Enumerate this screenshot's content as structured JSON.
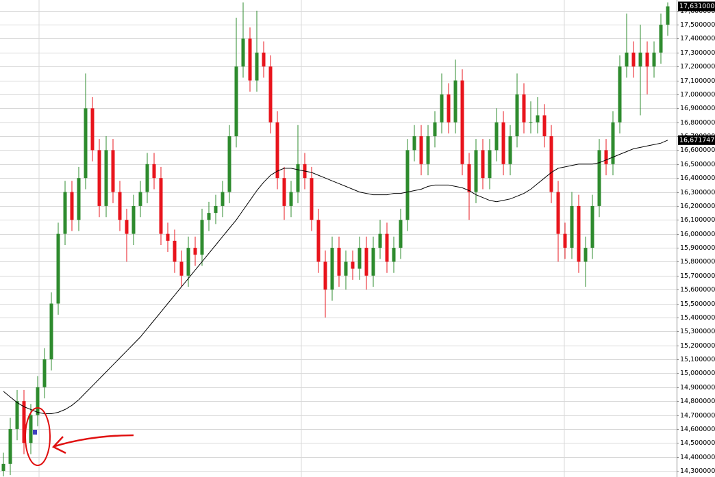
{
  "chart_data": {
    "type": "candlestick",
    "up_color": "#2e8b2e",
    "down_color": "#e8141c",
    "ma_color": "#000000",
    "grid": true,
    "ylim": [
      14.256,
      17.677
    ],
    "yticks": [
      {
        "value": 14.3,
        "label": "14,300000"
      },
      {
        "value": 14.4,
        "label": "14,400000"
      },
      {
        "value": 14.5,
        "label": "14,500000"
      },
      {
        "value": 14.6,
        "label": "14,600000"
      },
      {
        "value": 14.7,
        "label": "14,700000"
      },
      {
        "value": 14.8,
        "label": "14,800000"
      },
      {
        "value": 14.9,
        "label": "14,900000"
      },
      {
        "value": 15.0,
        "label": "15,000000"
      },
      {
        "value": 15.1,
        "label": "15,100000"
      },
      {
        "value": 15.2,
        "label": "15,200000"
      },
      {
        "value": 15.3,
        "label": "15,300000"
      },
      {
        "value": 15.4,
        "label": "15,400000"
      },
      {
        "value": 15.5,
        "label": "15,500000"
      },
      {
        "value": 15.6,
        "label": "15,600000"
      },
      {
        "value": 15.7,
        "label": "15,700000"
      },
      {
        "value": 15.8,
        "label": "15,800000"
      },
      {
        "value": 15.9,
        "label": "15,900000"
      },
      {
        "value": 16.0,
        "label": "16,000000"
      },
      {
        "value": 16.1,
        "label": "16,100000"
      },
      {
        "value": 16.2,
        "label": "16,200000"
      },
      {
        "value": 16.3,
        "label": "16,300000"
      },
      {
        "value": 16.4,
        "label": "16,400000"
      },
      {
        "value": 16.5,
        "label": "16,500000"
      },
      {
        "value": 16.6,
        "label": "16,600000"
      },
      {
        "value": 16.7,
        "label": "16,700000"
      },
      {
        "value": 16.8,
        "label": "16,800000"
      },
      {
        "value": 16.9,
        "label": "16,900000"
      },
      {
        "value": 17.0,
        "label": "17,000000"
      },
      {
        "value": 17.1,
        "label": "17,100000"
      },
      {
        "value": 17.2,
        "label": "17,200000"
      },
      {
        "value": 17.3,
        "label": "17,300000"
      },
      {
        "value": 17.4,
        "label": "17,400000"
      },
      {
        "value": 17.5,
        "label": "17,500000"
      },
      {
        "value": 17.6,
        "label": "17,600000"
      }
    ],
    "last_price": {
      "value": 17.631,
      "label": "17,631000"
    },
    "ma_last": {
      "value": 16.671747,
      "label": "16,671747"
    },
    "open": [
      14.3,
      14.35,
      14.6,
      14.8,
      14.5,
      14.7,
      14.9,
      15.1,
      15.5,
      16.0,
      16.3,
      16.1,
      16.4,
      16.9,
      16.6,
      16.2,
      16.6,
      16.3,
      16.1,
      16.0,
      16.2,
      16.3,
      16.5,
      16.4,
      16.0,
      15.95,
      15.8,
      15.7,
      15.9,
      15.85,
      16.1,
      16.15,
      16.2,
      16.3,
      16.7,
      17.2,
      17.4,
      17.1,
      17.3,
      17.2,
      16.8,
      16.4,
      16.2,
      16.3,
      16.5,
      16.4,
      16.1,
      15.8,
      15.6,
      15.9,
      15.7,
      15.8,
      15.75,
      15.9,
      15.7,
      15.9,
      16.0,
      15.8,
      15.9,
      16.1,
      16.6,
      16.7,
      16.5,
      16.7,
      16.8,
      17.0,
      16.8,
      17.1,
      16.5,
      16.3,
      16.6,
      16.4,
      16.6,
      16.8,
      16.5,
      16.7,
      17.0,
      16.8,
      16.8,
      16.85,
      16.7,
      16.3,
      16.0,
      15.9,
      16.2,
      15.8,
      15.9,
      16.2,
      16.6,
      16.5,
      16.8,
      17.2,
      17.3,
      17.2,
      17.3,
      17.2,
      17.3,
      17.5
    ],
    "high": [
      14.43,
      14.68,
      14.88,
      14.88,
      14.78,
      14.98,
      15.18,
      15.58,
      16.08,
      16.38,
      16.38,
      16.48,
      17.15,
      16.98,
      16.68,
      16.7,
      16.68,
      16.38,
      16.18,
      16.28,
      16.38,
      16.58,
      16.58,
      16.48,
      16.08,
      16.03,
      15.88,
      15.98,
      15.98,
      16.18,
      16.23,
      16.28,
      16.38,
      16.78,
      17.55,
      17.66,
      17.48,
      17.6,
      17.38,
      17.28,
      16.88,
      16.48,
      16.38,
      16.78,
      16.58,
      16.48,
      16.18,
      15.88,
      15.98,
      15.98,
      15.88,
      15.88,
      15.98,
      15.98,
      15.98,
      16.1,
      16.08,
      15.98,
      16.18,
      16.68,
      16.78,
      16.78,
      16.78,
      16.88,
      17.15,
      17.08,
      17.25,
      17.18,
      16.58,
      16.68,
      16.68,
      16.68,
      16.9,
      16.88,
      16.78,
      17.15,
      17.08,
      16.95,
      16.98,
      16.93,
      16.78,
      16.38,
      16.08,
      16.3,
      16.28,
      15.98,
      16.28,
      16.68,
      16.68,
      16.88,
      17.28,
      17.58,
      17.38,
      17.5,
      17.38,
      17.38,
      17.58,
      17.66
    ],
    "low": [
      14.26,
      14.27,
      14.52,
      14.42,
      14.42,
      14.62,
      14.82,
      15.02,
      15.42,
      15.92,
      16.02,
      16.02,
      16.32,
      16.52,
      16.12,
      16.12,
      16.22,
      16.02,
      15.8,
      15.92,
      16.12,
      16.22,
      16.32,
      15.92,
      15.87,
      15.72,
      15.62,
      15.62,
      15.77,
      15.77,
      16.02,
      16.07,
      16.12,
      16.22,
      16.62,
      17.12,
      17.02,
      17.02,
      17.12,
      16.72,
      16.32,
      16.1,
      16.12,
      16.22,
      16.32,
      16.02,
      15.72,
      15.4,
      15.52,
      15.62,
      15.6,
      15.67,
      15.67,
      15.6,
      15.62,
      15.82,
      15.72,
      15.72,
      15.82,
      16.02,
      16.52,
      16.42,
      16.42,
      16.62,
      16.72,
      16.72,
      16.72,
      16.42,
      16.1,
      16.22,
      16.32,
      16.32,
      16.52,
      16.42,
      16.42,
      16.62,
      16.72,
      16.72,
      16.72,
      16.62,
      16.22,
      15.8,
      15.82,
      15.82,
      15.72,
      15.62,
      15.82,
      16.12,
      16.42,
      16.42,
      16.72,
      17.12,
      17.12,
      16.85,
      17.0,
      17.12,
      17.22,
      17.42
    ],
    "close": [
      14.35,
      14.6,
      14.8,
      14.5,
      14.7,
      14.9,
      15.1,
      15.5,
      16.0,
      16.3,
      16.1,
      16.4,
      16.9,
      16.6,
      16.2,
      16.6,
      16.3,
      16.1,
      16.0,
      16.2,
      16.3,
      16.5,
      16.4,
      16.0,
      15.95,
      15.8,
      15.7,
      15.9,
      15.85,
      16.1,
      16.15,
      16.2,
      16.3,
      16.7,
      17.2,
      17.4,
      17.1,
      17.3,
      17.2,
      16.8,
      16.4,
      16.2,
      16.3,
      16.5,
      16.4,
      16.1,
      15.8,
      15.6,
      15.9,
      15.7,
      15.8,
      15.75,
      15.9,
      15.7,
      15.9,
      16.0,
      15.8,
      15.9,
      16.1,
      16.6,
      16.7,
      16.5,
      16.7,
      16.8,
      17.0,
      16.8,
      17.1,
      16.5,
      16.3,
      16.6,
      16.4,
      16.6,
      16.8,
      16.5,
      16.7,
      17.0,
      16.8,
      16.8,
      16.85,
      16.7,
      16.3,
      16.0,
      15.9,
      16.2,
      15.8,
      15.9,
      16.2,
      16.6,
      16.5,
      16.8,
      17.2,
      17.3,
      17.2,
      17.3,
      17.2,
      17.3,
      17.5,
      17.631
    ],
    "ma": [
      14.87,
      14.83,
      14.79,
      14.76,
      14.74,
      14.72,
      14.71,
      14.71,
      14.72,
      14.74,
      14.77,
      14.81,
      14.86,
      14.91,
      14.96,
      15.01,
      15.06,
      15.11,
      15.16,
      15.21,
      15.26,
      15.32,
      15.38,
      15.44,
      15.5,
      15.56,
      15.62,
      15.68,
      15.74,
      15.8,
      15.86,
      15.92,
      15.98,
      16.04,
      16.1,
      16.17,
      16.24,
      16.31,
      16.37,
      16.42,
      16.45,
      16.47,
      16.47,
      16.46,
      16.45,
      16.44,
      16.42,
      16.4,
      16.38,
      16.36,
      16.34,
      16.32,
      16.3,
      16.29,
      16.28,
      16.28,
      16.28,
      16.29,
      16.29,
      16.3,
      16.31,
      16.32,
      16.34,
      16.35,
      16.35,
      16.35,
      16.34,
      16.33,
      16.31,
      16.28,
      16.26,
      16.24,
      16.23,
      16.24,
      16.25,
      16.27,
      16.29,
      16.32,
      16.36,
      16.4,
      16.44,
      16.47,
      16.48,
      16.49,
      16.5,
      16.5,
      16.5,
      16.51,
      16.53,
      16.55,
      16.57,
      16.59,
      16.61,
      16.62,
      16.63,
      16.64,
      16.65,
      16.671747
    ]
  }
}
